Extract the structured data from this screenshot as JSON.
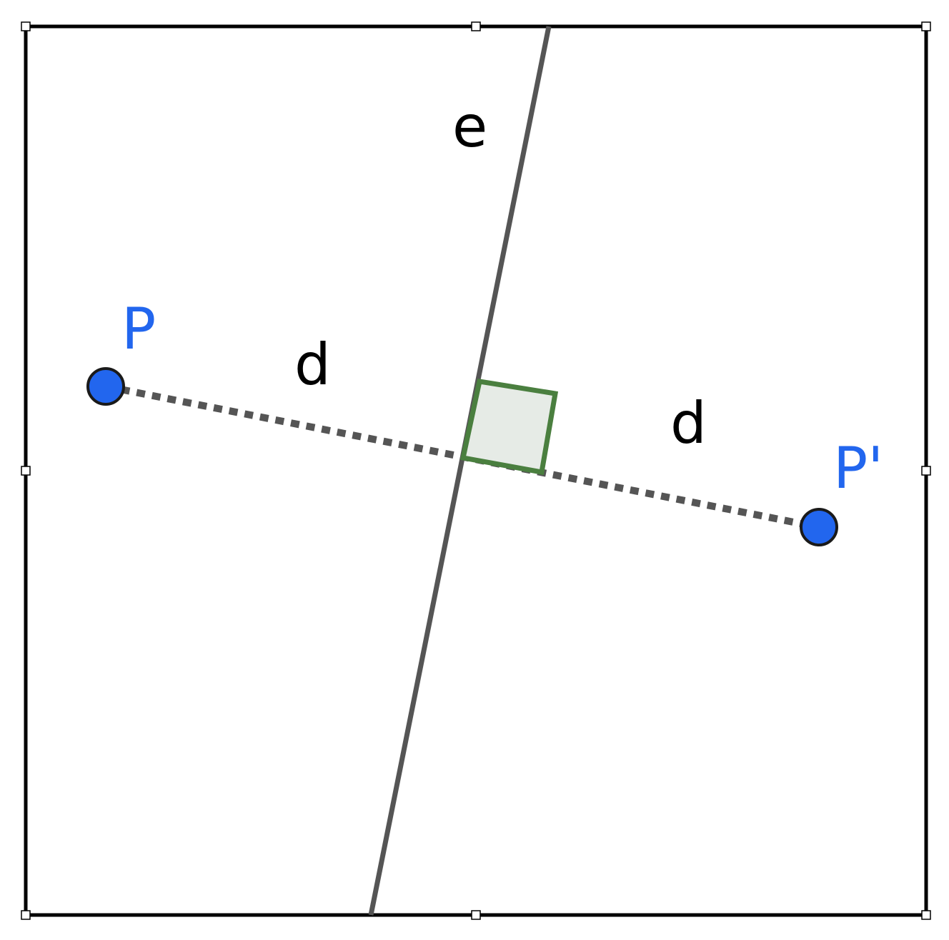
{
  "diagram": {
    "line_label": "e",
    "point_label": "P",
    "image_point_label": "P'",
    "distance_left_label": "d",
    "distance_right_label": "d"
  },
  "colors": {
    "frame": "#000000",
    "mirror_line": "#555555",
    "point_fill": "#2266ee",
    "point_label": "#2266ee",
    "segment": "#555555",
    "right_angle_stroke": "#4a7f3f",
    "right_angle_fill": "#e6ebe6",
    "text": "#000000"
  },
  "icons": {
    "handles": "resize-handle-icon"
  }
}
